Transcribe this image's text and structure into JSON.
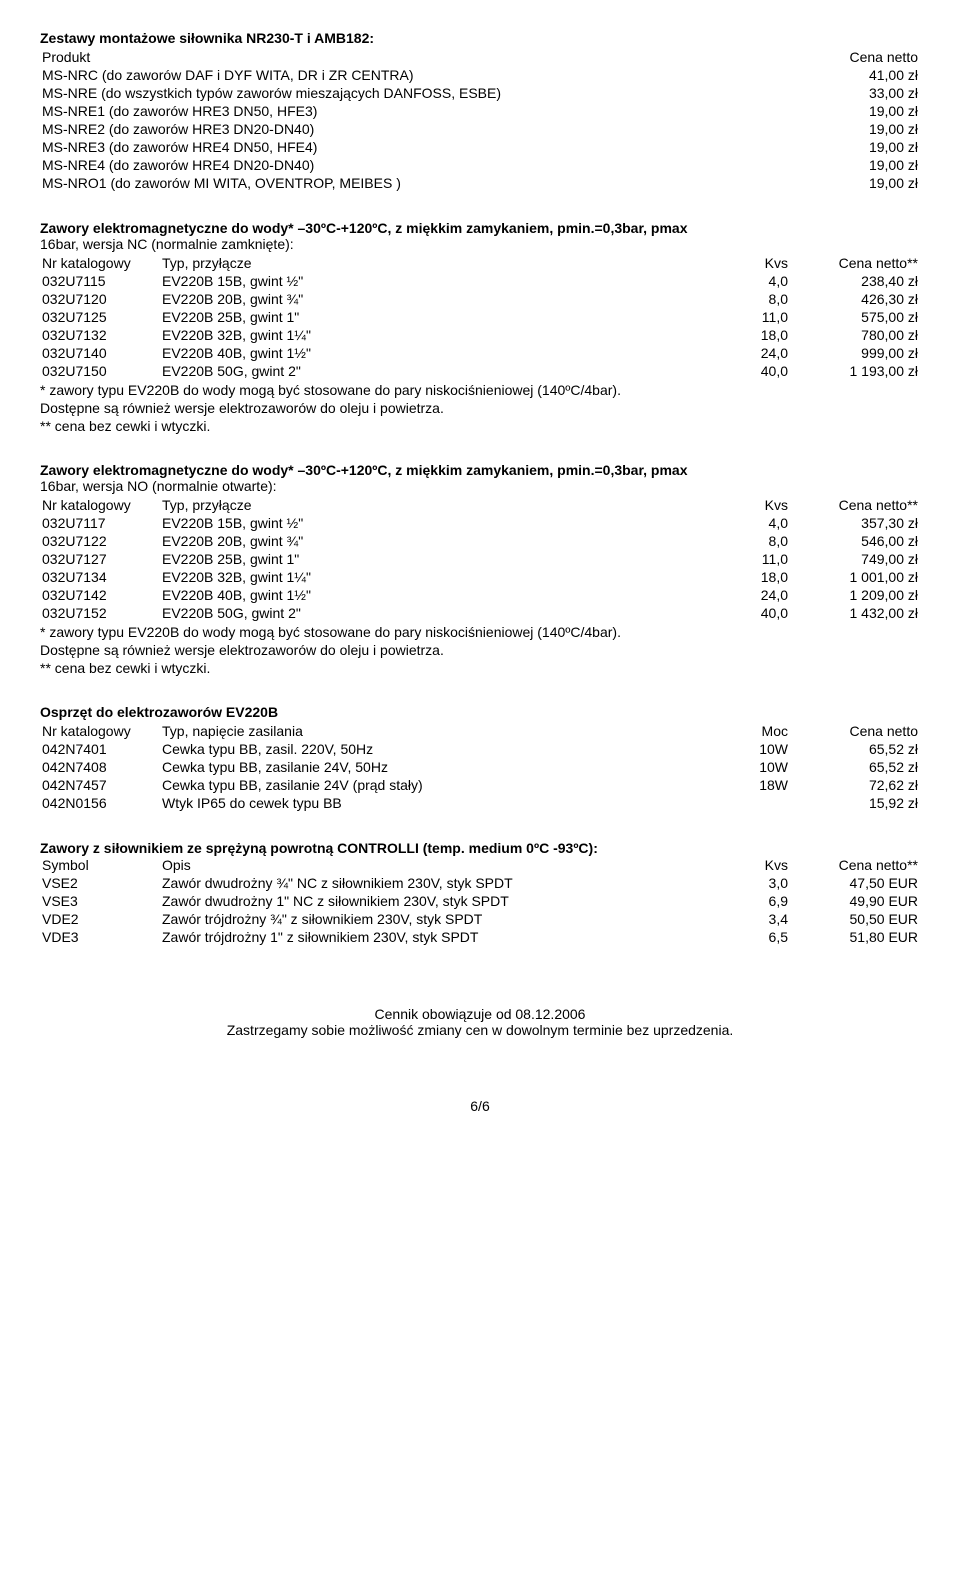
{
  "sec1": {
    "title": "Zestawy montażowe siłownika NR230-T i AMB182:",
    "col_product": "Produkt",
    "col_price": "Cena netto",
    "rows": [
      {
        "label": "MS-NRC (do zaworów DAF i DYF WITA, DR i ZR CENTRA)",
        "price": "41,00 zł"
      },
      {
        "label": "MS-NRE (do wszystkich typów zaworów mieszających DANFOSS, ESBE)",
        "price": "33,00 zł"
      },
      {
        "label": "MS-NRE1 (do zaworów HRE3 DN50, HFE3)",
        "price": "19,00 zł"
      },
      {
        "label": "MS-NRE2 (do zaworów HRE3 DN20-DN40)",
        "price": "19,00 zł"
      },
      {
        "label": "MS-NRE3 (do zaworów HRE4 DN50, HFE4)",
        "price": "19,00 zł"
      },
      {
        "label": "MS-NRE4 (do zaworów HRE4 DN20-DN40)",
        "price": "19,00 zł"
      },
      {
        "label": "MS-NRO1 (do zaworów MI WITA, OVENTROP, MEIBES )",
        "price": "19,00 zł"
      }
    ]
  },
  "sec2": {
    "title": "Zawory elektromagnetyczne do wody* –30ºC-+120ºC, z miękkim zamykaniem, pmin.=0,3bar, pmax",
    "intro": "16bar, wersja NC (normalnie zamknięte):",
    "col_cat": "Nr katalogowy",
    "col_type": "Typ, przyłącze",
    "col_kvs": "Kvs",
    "col_price": "Cena netto**",
    "rows": [
      {
        "cat": "032U7115",
        "type": "EV220B 15B, gwint ½\"",
        "kvs": "4,0",
        "price": "238,40 zł"
      },
      {
        "cat": "032U7120",
        "type": "EV220B 20B, gwint ¾\"",
        "kvs": "8,0",
        "price": "426,30 zł"
      },
      {
        "cat": "032U7125",
        "type": "EV220B 25B, gwint 1\"",
        "kvs": "11,0",
        "price": "575,00 zł"
      },
      {
        "cat": "032U7132",
        "type": "EV220B 32B, gwint 1¼\"",
        "kvs": "18,0",
        "price": "780,00 zł"
      },
      {
        "cat": "032U7140",
        "type": "EV220B 40B, gwint 1½\"",
        "kvs": "24,0",
        "price": "999,00 zł"
      },
      {
        "cat": "032U7150",
        "type": "EV220B 50G, gwint 2\"",
        "kvs": "40,0",
        "price": "1 193,00 zł"
      }
    ],
    "notes": [
      "* zawory typu EV220B do wody mogą być stosowane do pary niskociśnieniowej (140ºC/4bar).",
      "Dostępne są również wersje elektrozaworów do oleju i powietrza.",
      "** cena bez cewki i wtyczki."
    ]
  },
  "sec3": {
    "title": "Zawory elektromagnetyczne do wody* –30ºC-+120ºC, z miękkim zamykaniem, pmin.=0,3bar, pmax",
    "intro": "16bar, wersja NO (normalnie otwarte):",
    "col_cat": "Nr katalogowy",
    "col_type": "Typ, przyłącze",
    "col_kvs": "Kvs",
    "col_price": "Cena netto**",
    "rows": [
      {
        "cat": "032U7117",
        "type": "EV220B 15B, gwint ½\"",
        "kvs": "4,0",
        "price": "357,30 zł"
      },
      {
        "cat": "032U7122",
        "type": "EV220B 20B, gwint ¾\"",
        "kvs": "8,0",
        "price": "546,00 zł"
      },
      {
        "cat": "032U7127",
        "type": "EV220B 25B, gwint 1\"",
        "kvs": "11,0",
        "price": "749,00 zł"
      },
      {
        "cat": "032U7134",
        "type": "EV220B 32B, gwint 1¼\"",
        "kvs": "18,0",
        "price": "1 001,00 zł"
      },
      {
        "cat": "032U7142",
        "type": "EV220B 40B, gwint 1½\"",
        "kvs": "24,0",
        "price": "1 209,00 zł"
      },
      {
        "cat": "032U7152",
        "type": "EV220B 50G, gwint 2\"",
        "kvs": "40,0",
        "price": "1 432,00 zł"
      }
    ],
    "notes": [
      "* zawory typu EV220B do wody mogą być stosowane do pary niskociśnieniowej (140ºC/4bar).",
      "Dostępne są również wersje elektrozaworów do oleju i powietrza.",
      "** cena bez cewki i wtyczki."
    ]
  },
  "sec4": {
    "title": "Osprzęt do elektrozaworów EV220B",
    "col_cat": "Nr katalogowy",
    "col_type": "Typ, napięcie zasilania",
    "col_kvs": "Moc",
    "col_price": "Cena netto",
    "rows": [
      {
        "cat": "042N7401",
        "type": "Cewka typu BB, zasil. 220V, 50Hz",
        "kvs": "10W",
        "price": "65,52 zł"
      },
      {
        "cat": "042N7408",
        "type": "Cewka typu BB, zasilanie 24V, 50Hz",
        "kvs": "10W",
        "price": "65,52 zł"
      },
      {
        "cat": "042N7457",
        "type": "Cewka typu BB, zasilanie 24V (prąd stały)",
        "kvs": "18W",
        "price": "72,62 zł"
      },
      {
        "cat": "042N0156",
        "type": "Wtyk IP65 do cewek typu BB",
        "kvs": "",
        "price": "15,92 zł"
      }
    ]
  },
  "sec5": {
    "title": "Zawory z siłownikiem ze sprężyną powrotną CONTROLLI (temp. medium 0ºC -93ºC):",
    "col_cat": "Symbol",
    "col_type": "Opis",
    "col_kvs": "Kvs",
    "col_price": "Cena netto**",
    "rows": [
      {
        "cat": "VSE2",
        "type": "Zawór dwudrożny ¾\" NC z siłownikiem 230V, styk SPDT",
        "kvs": "3,0",
        "price": "47,50 EUR"
      },
      {
        "cat": "VSE3",
        "type": "Zawór dwudrożny 1\" NC z siłownikiem 230V, styk SPDT",
        "kvs": "6,9",
        "price": "49,90 EUR"
      },
      {
        "cat": "VDE2",
        "type": "Zawór trójdrożny ¾\" z siłownikiem 230V, styk SPDT",
        "kvs": "3,4",
        "price": "50,50 EUR"
      },
      {
        "cat": "VDE3",
        "type": "Zawór trójdrożny 1\" z siłownikiem 230V, styk SPDT",
        "kvs": "6,5",
        "price": "51,80 EUR"
      }
    ]
  },
  "footer": {
    "line1": "Cennik obowiązuje od 08.12.2006",
    "line2": "Zastrzegamy sobie możliwość zmiany cen w dowolnym terminie bez uprzedzenia."
  },
  "pagenum": "6/6"
}
